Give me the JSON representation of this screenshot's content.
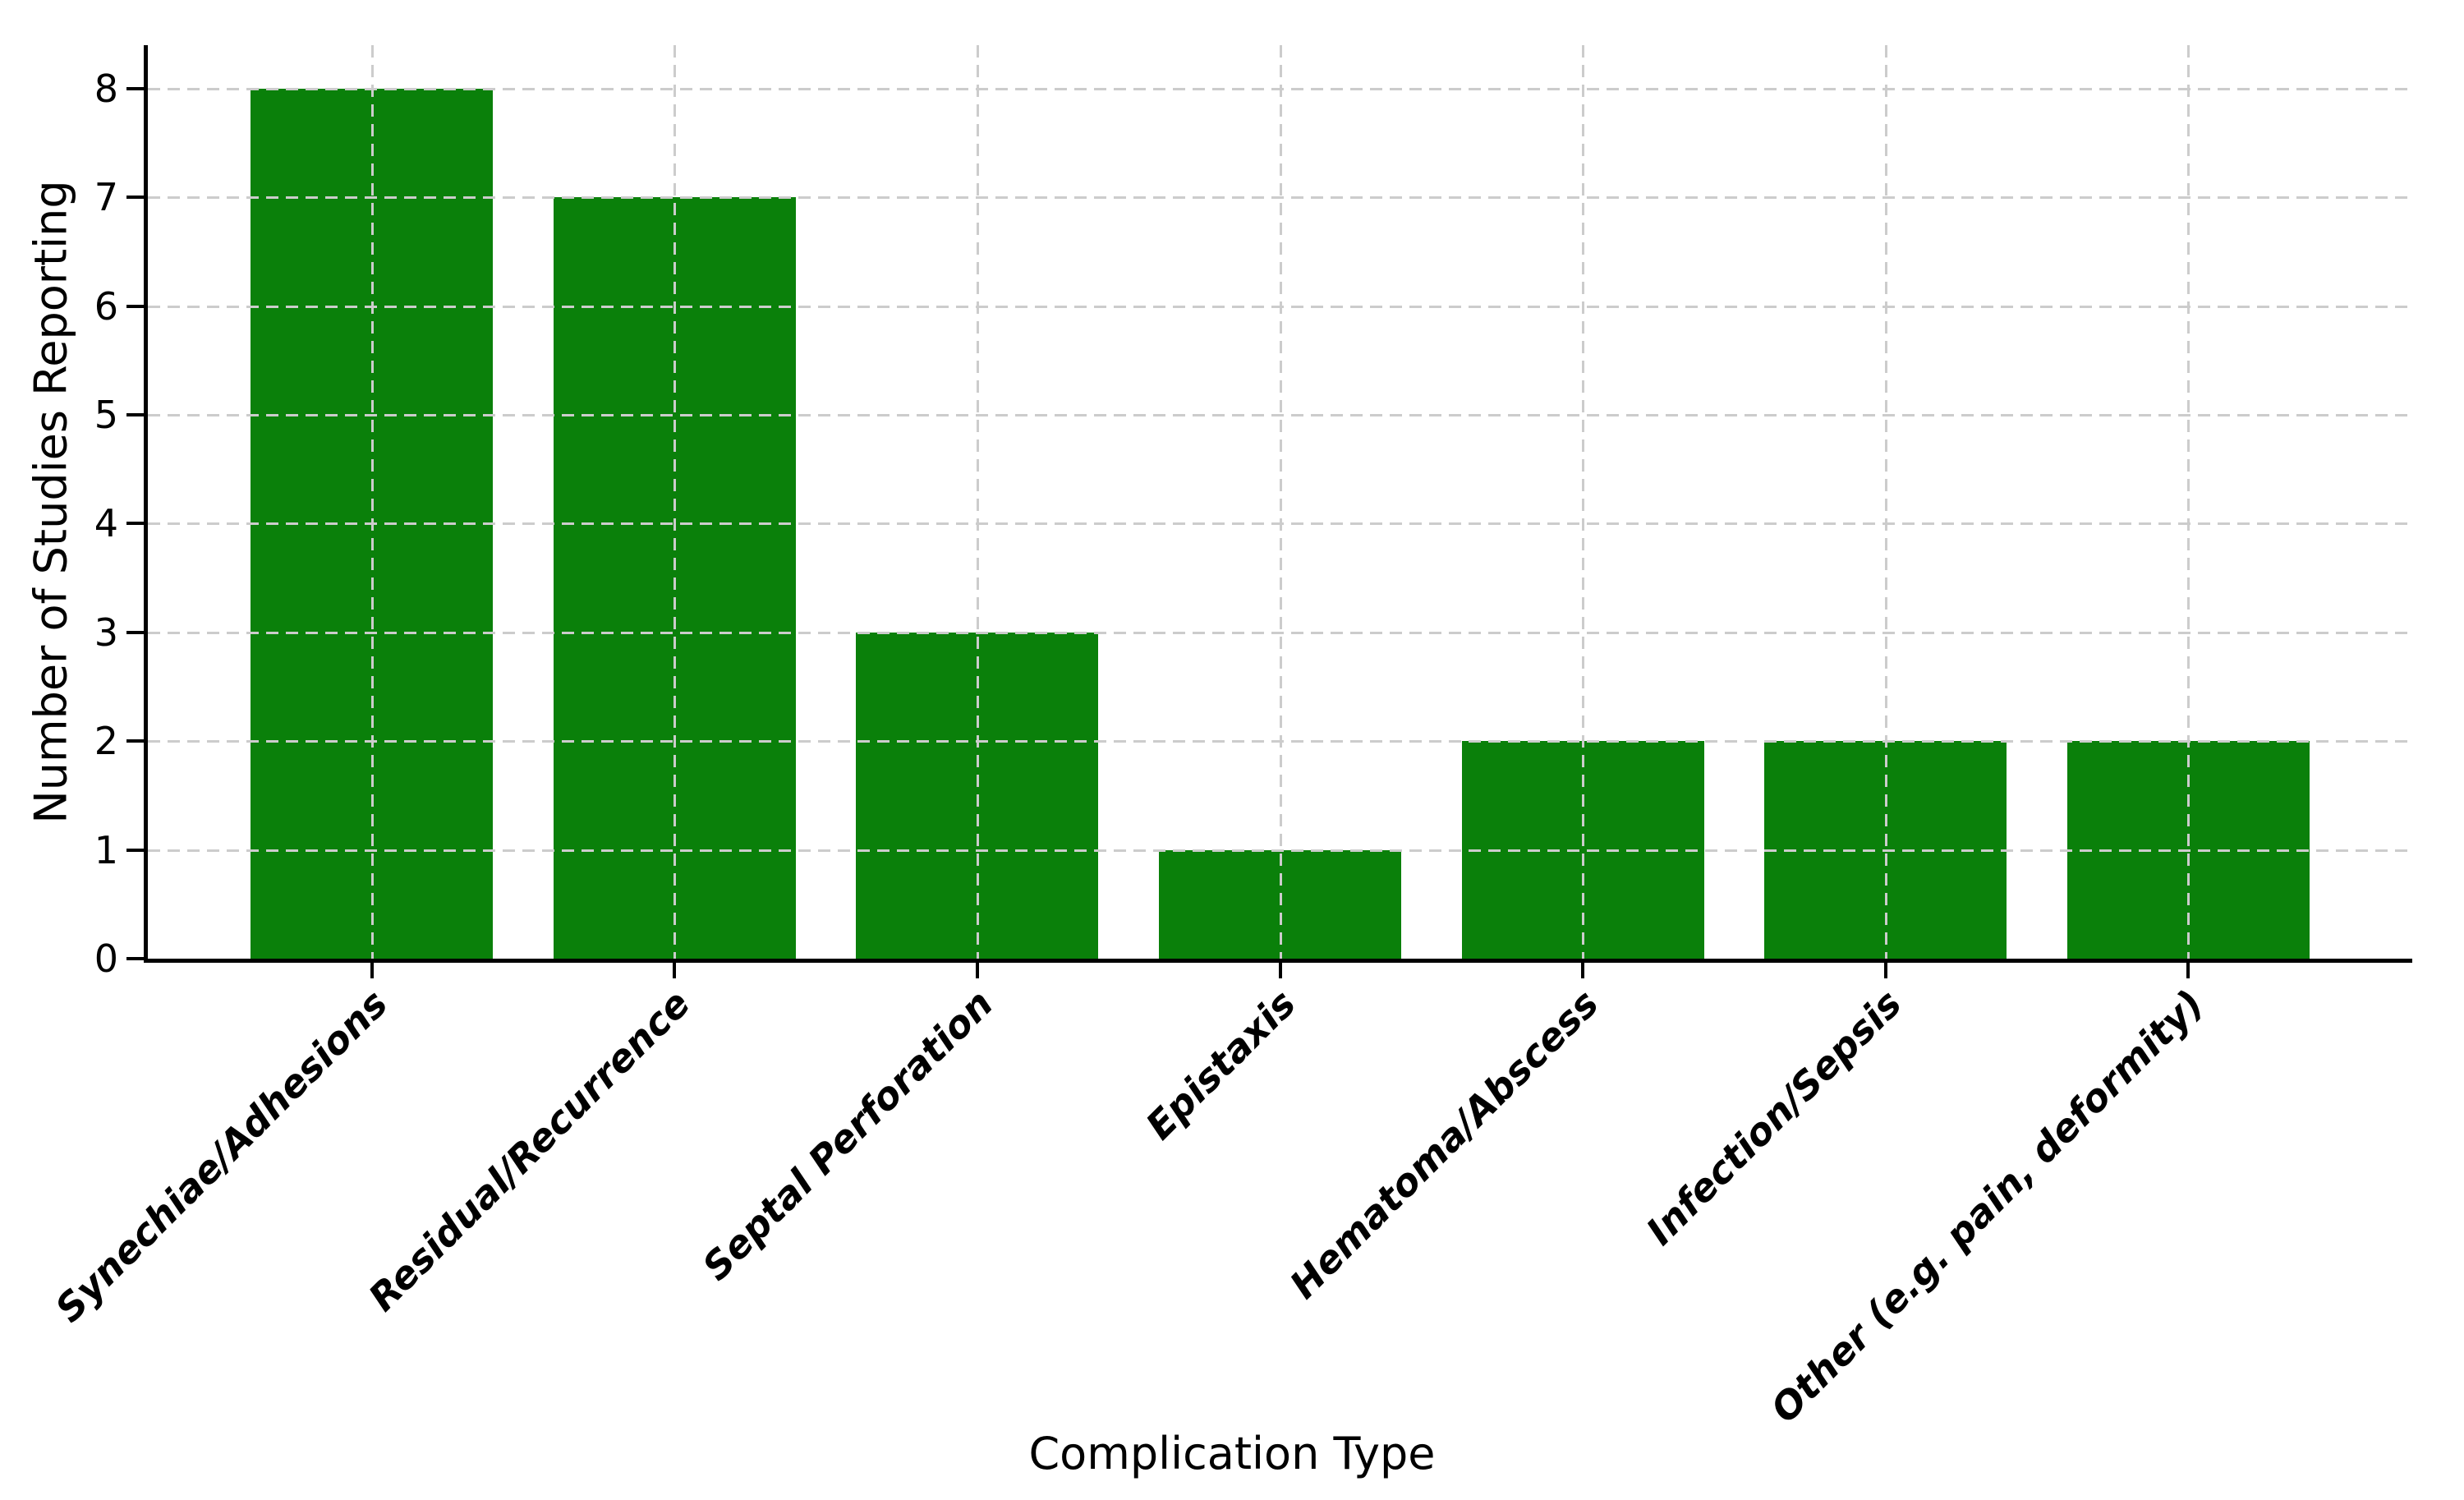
{
  "chart_data": {
    "type": "bar",
    "categories": [
      "Synechiae/Adhesions",
      "Residual/Recurrence",
      "Septal Perforation",
      "Epistaxis",
      "Hematoma/Abscess",
      "Infection/Sepsis",
      "Other (e.g. pain, deformity)"
    ],
    "values": [
      8,
      7,
      3,
      1,
      2,
      2,
      2
    ],
    "title": "",
    "xlabel": "Complication Type",
    "ylabel": "Number of Studies Reporting",
    "yticks": [
      0,
      1,
      2,
      3,
      4,
      5,
      6,
      7,
      8
    ],
    "ylim": [
      0,
      8.4
    ],
    "bar_color": "#0a800a",
    "bar_width_fraction": 0.8,
    "grid": true,
    "grid_color": "#cccccc",
    "grid_style": "dashed",
    "grid_above_bars": true,
    "legend_position": "none",
    "axis_color": "#000000",
    "background_color": "#ffffff"
  }
}
